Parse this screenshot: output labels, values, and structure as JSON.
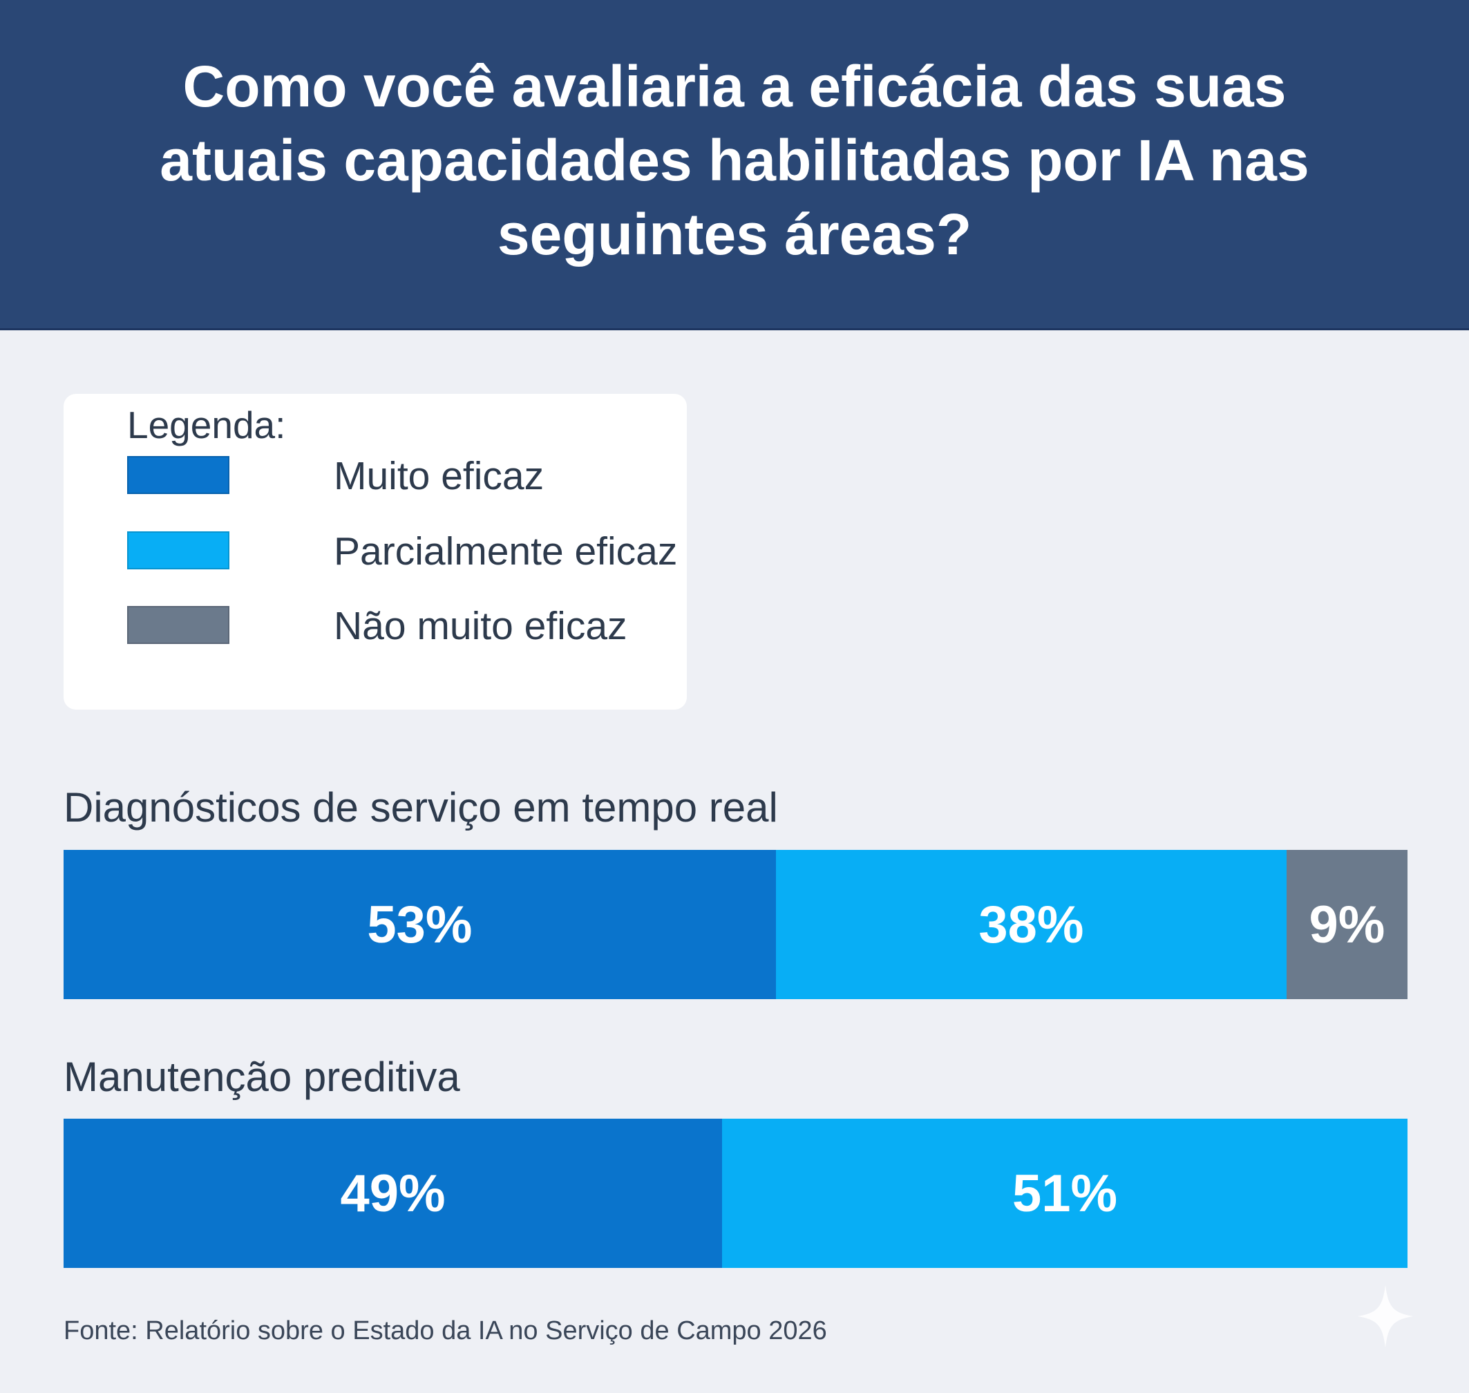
{
  "header": {
    "title": "Como você avaliaria a eficácia das suas atuais capacidades habilitadas por IA nas seguintes áreas?"
  },
  "legend": {
    "title": "Legenda:"
  },
  "chart_data": {
    "type": "bar",
    "orientation": "horizontal-stacked-100",
    "title": "Como você avaliaria a eficácia das suas atuais capacidades habilitadas por IA nas seguintes áreas?",
    "categories": [
      "Diagnósticos de serviço em tempo real",
      "Manutenção preditiva"
    ],
    "series": [
      {
        "name": "Muito eficaz",
        "color": "#0a74cc",
        "values": [
          53,
          49
        ],
        "labels": [
          "53%",
          "49%"
        ]
      },
      {
        "name": "Parcialmente eficaz",
        "color": "#08aef5",
        "values": [
          38,
          51
        ],
        "labels": [
          "38%",
          "51%"
        ]
      },
      {
        "name": "Não muito eficaz",
        "color": "#6b7a8c",
        "values": [
          9,
          0
        ],
        "labels": [
          "9%",
          ""
        ]
      }
    ],
    "legend_position": "top-left",
    "grid": false
  },
  "footer": {
    "source": "Fonte: Relatório sobre o Estado da IA no Serviço de Campo 2026"
  },
  "colors": {
    "header": "#2a4775",
    "background": "#eef0f5"
  }
}
